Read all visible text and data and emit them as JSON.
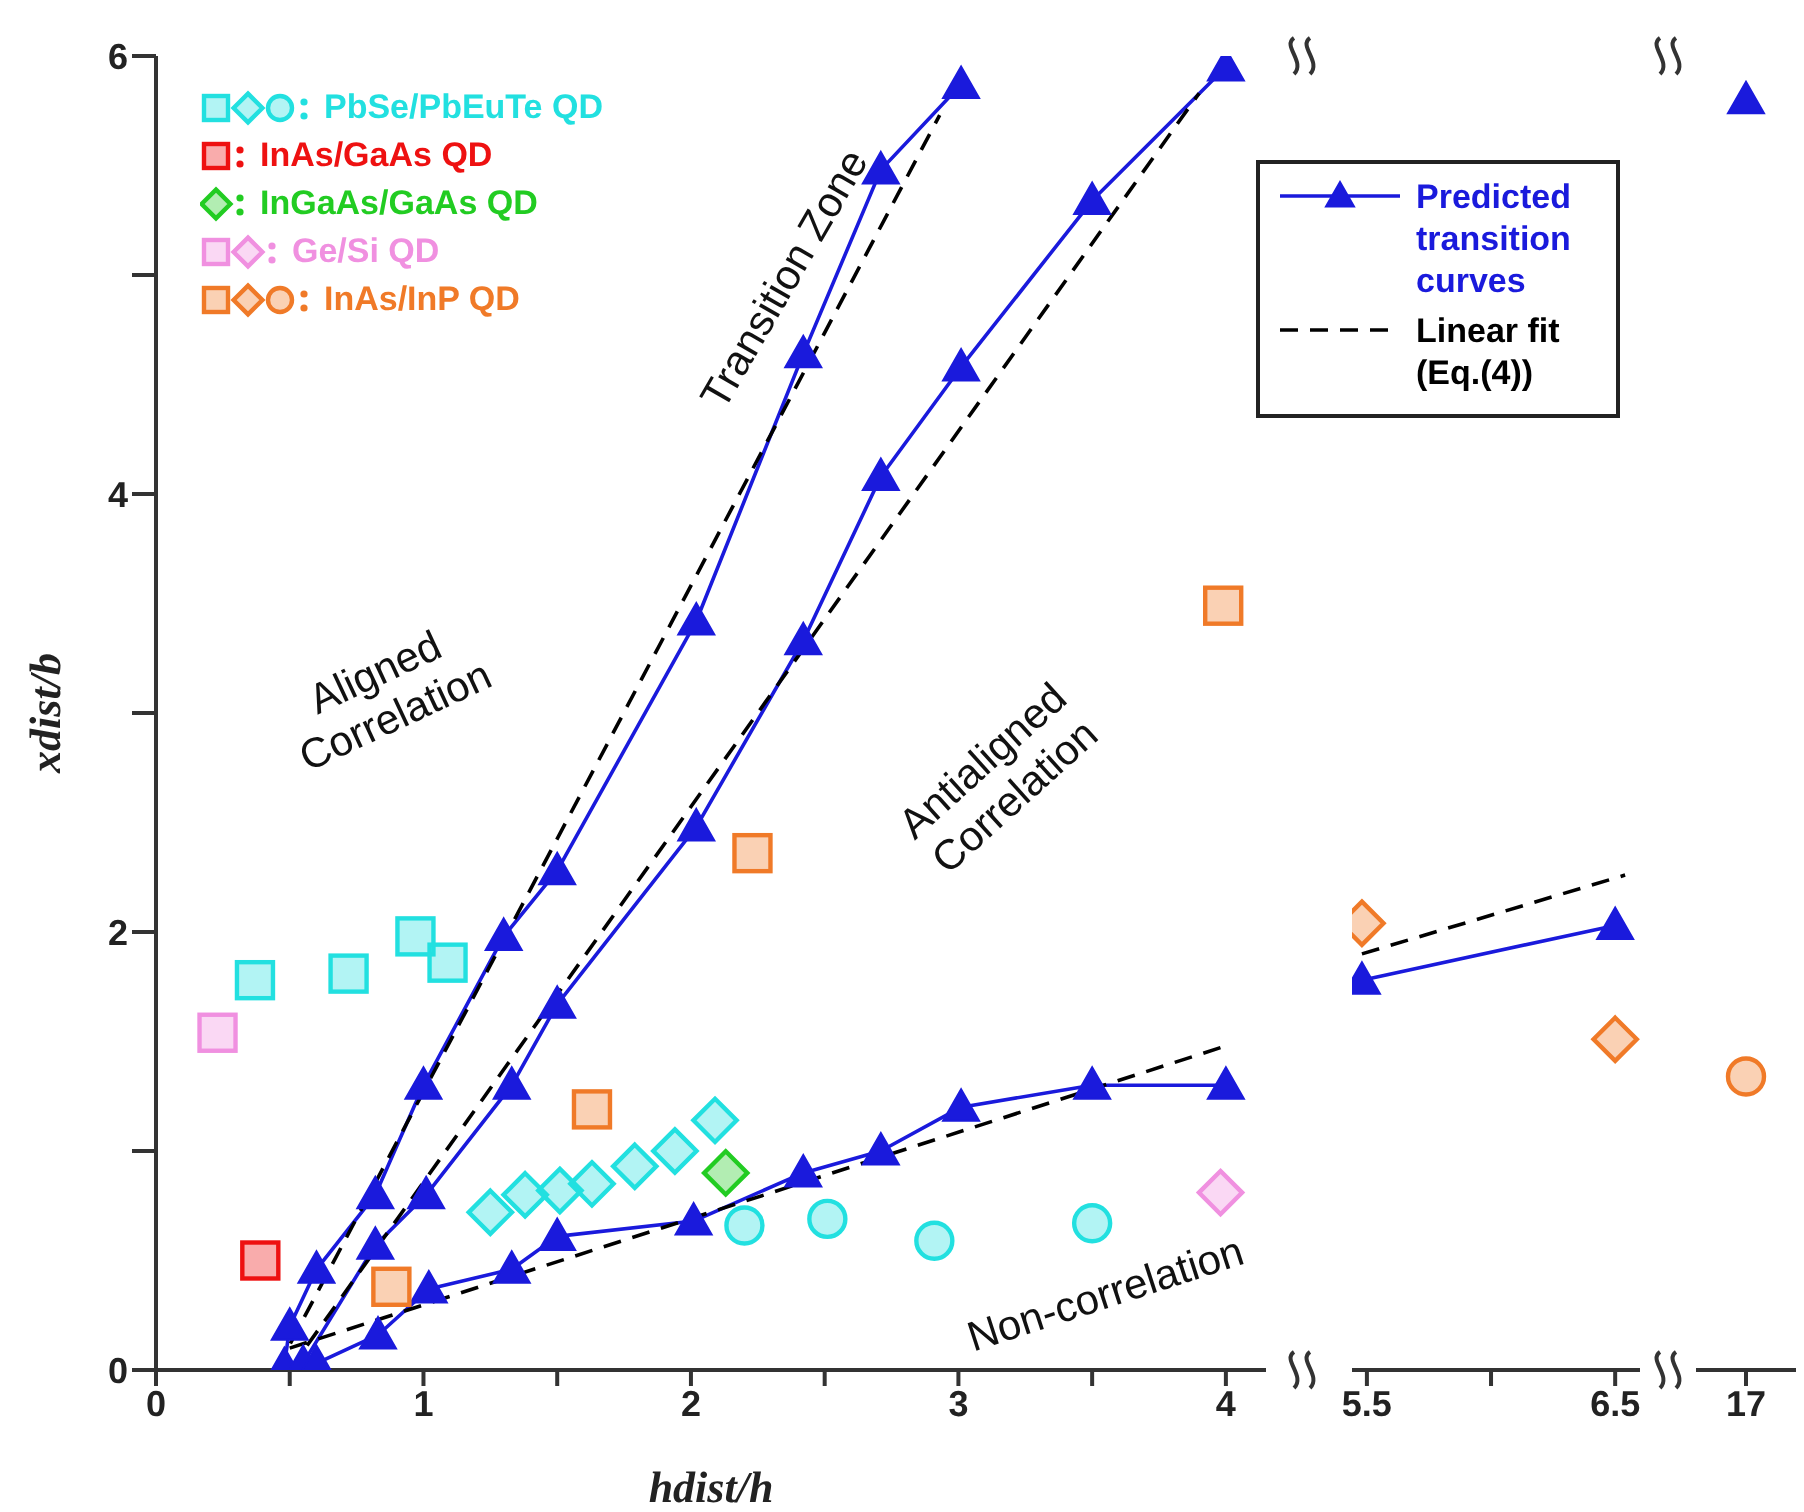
{
  "chart_data": [
    {
      "type": "scatter",
      "xlabel": "hdist/h",
      "ylabel": "xdist/b",
      "xlim": [
        0,
        4.15
      ],
      "ylim": [
        0,
        6
      ],
      "xticks": [
        0,
        {
          "value": 0.5,
          "label": null
        },
        1,
        {
          "value": 1.5,
          "label": null
        },
        2,
        {
          "value": 2.5,
          "label": null
        },
        3,
        {
          "value": 3.5,
          "label": null
        },
        4
      ],
      "yticks": [
        0,
        {
          "value": 1,
          "label": null
        },
        2,
        {
          "value": 3,
          "label": null
        },
        4,
        {
          "value": 5,
          "label": null
        },
        6
      ],
      "legend": "top",
      "annotations": [
        "Aligned Correlation",
        "Transition Zone",
        "Antialigned Correlation",
        "Non-correlation"
      ],
      "series": [
        {
          "type": "line",
          "name": "Predicted transition curves",
          "color": "#1a1adc",
          "marker": "triangle",
          "line_style": "solid",
          "x": [
            0.48,
            0.5,
            0.6,
            0.82,
            1.0,
            1.3,
            1.5,
            2.02,
            2.42,
            2.71,
            3.01
          ],
          "values": [
            0.02,
            0.2,
            0.46,
            0.8,
            1.3,
            1.98,
            2.28,
            3.42,
            4.64,
            5.48,
            5.87
          ]
        },
        {
          "type": "line",
          "color": "#1a1adc",
          "marker": "triangle",
          "line_style": "solid",
          "x": [
            0.55,
            0.82,
            1.01,
            1.33,
            1.5,
            2.02,
            2.42,
            2.71,
            3.01,
            3.5,
            4.0
          ],
          "values": [
            0.03,
            0.57,
            0.8,
            1.3,
            1.67,
            2.48,
            3.33,
            4.08,
            4.58,
            5.34,
            5.95
          ]
        },
        {
          "type": "line",
          "color": "#1a1adc",
          "marker": "triangle",
          "line_style": "solid",
          "x": [
            0.6,
            0.83,
            1.02,
            1.33,
            1.5,
            2.01,
            2.42,
            2.71,
            3.01,
            3.5,
            4.0
          ],
          "values": [
            0.03,
            0.16,
            0.37,
            0.46,
            0.61,
            0.68,
            0.9,
            1.0,
            1.2,
            1.3,
            1.3
          ]
        },
        {
          "type": "line",
          "name": "Linear fit (Eq.(4))",
          "color": "#000000",
          "marker": "none",
          "line_style": "dashed",
          "x": [
            0.45,
            2.93
          ],
          "values": [
            0,
            5.73
          ]
        },
        {
          "type": "line",
          "color": "#000000",
          "marker": "none",
          "line_style": "dashed",
          "x": [
            0.5,
            3.9
          ],
          "values": [
            0,
            5.83
          ]
        },
        {
          "type": "line",
          "color": "#000000",
          "marker": "none",
          "line_style": "dashed",
          "x": [
            0.5,
            4.0
          ],
          "values": [
            0.1,
            1.48
          ]
        },
        {
          "type": "scatter",
          "name": "PbSe/PbEuTe QD",
          "color": "#22e0e0",
          "marker": "square",
          "x": [
            0.37,
            0.72,
            0.97,
            1.09
          ],
          "values": [
            1.78,
            1.81,
            1.98,
            1.86
          ]
        },
        {
          "type": "scatter",
          "color": "#22e0e0",
          "marker": "diamond",
          "x": [
            1.25,
            1.38,
            1.51,
            1.63,
            1.79,
            1.94,
            2.09
          ],
          "values": [
            0.72,
            0.8,
            0.82,
            0.85,
            0.93,
            1.0,
            1.14
          ]
        },
        {
          "type": "scatter",
          "color": "#22e0e0",
          "marker": "circle",
          "x": [
            2.2,
            2.51,
            2.91,
            3.5
          ],
          "values": [
            0.66,
            0.69,
            0.59,
            0.67
          ]
        },
        {
          "type": "scatter",
          "name": "InAs/GaAs QD",
          "color": "#ee1111",
          "marker": "square",
          "x": [
            0.39
          ],
          "values": [
            0.5
          ]
        },
        {
          "type": "scatter",
          "name": "InGaAs/GaAs QD",
          "color": "#22cc22",
          "marker": "diamond",
          "x": [
            2.13
          ],
          "values": [
            0.9
          ]
        },
        {
          "type": "scatter",
          "name": "Ge/Si QD",
          "color": "#f090e0",
          "marker": "square",
          "x": [
            0.23
          ],
          "values": [
            1.54
          ]
        },
        {
          "type": "scatter",
          "color": "#f090e0",
          "marker": "diamond",
          "x": [
            3.98
          ],
          "values": [
            0.81
          ]
        },
        {
          "type": "scatter",
          "name": "InAs/InP QD",
          "color": "#f07a28",
          "marker": "square",
          "x": [
            0.88,
            1.63,
            2.23,
            3.99
          ],
          "values": [
            0.38,
            1.19,
            2.36,
            3.49
          ]
        }
      ]
    },
    {
      "type": "scatter",
      "xlim": [
        5.44,
        6.6
      ],
      "ylim": [
        0,
        6
      ],
      "tick_labels": "x",
      "xticks": [
        5.5,
        {
          "value": 6,
          "label": null
        },
        6.5
      ],
      "series": [
        {
          "type": "line",
          "color": "#1a1adc",
          "marker": "triangle",
          "line_style": "solid",
          "x": [
            5.48,
            6.5
          ],
          "values": [
            1.78,
            2.03
          ]
        },
        {
          "type": "line",
          "color": "#000000",
          "marker": "none",
          "line_style": "dashed",
          "x": [
            5.48,
            6.54
          ],
          "values": [
            1.9,
            2.26
          ]
        },
        {
          "type": "scatter",
          "color": "#f07a28",
          "marker": "diamond",
          "x": [
            5.48,
            6.5
          ],
          "values": [
            2.04,
            1.51
          ]
        }
      ]
    },
    {
      "type": "scatter",
      "categories": [
        "17"
      ],
      "ylim": [
        0,
        6
      ],
      "tick_labels": "x",
      "series": [
        {
          "type": "line",
          "color": "#1a1adc",
          "marker": "triangle",
          "line_style": "solid",
          "values": [
            5.8
          ]
        },
        {
          "type": "scatter",
          "color": "#f07a28",
          "marker": "circle",
          "values": [
            1.34
          ]
        }
      ]
    }
  ]
}
